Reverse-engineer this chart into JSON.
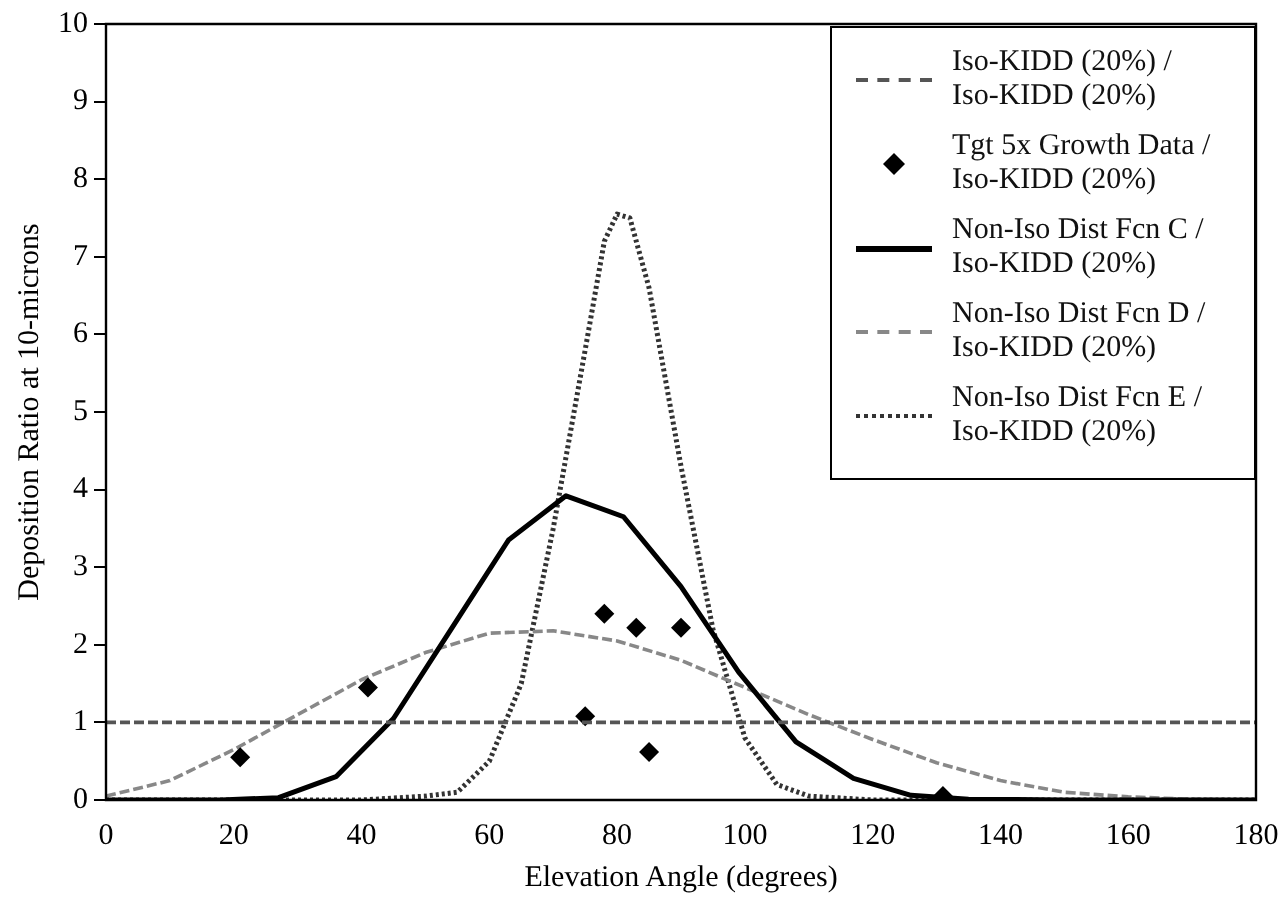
{
  "chart_data": {
    "type": "line",
    "xlabel": "Elevation Angle (degrees)",
    "ylabel": "Deposition Ratio at 10-microns",
    "xlim": [
      0,
      180
    ],
    "xticks": [
      0,
      20,
      40,
      60,
      80,
      100,
      120,
      140,
      160,
      180
    ],
    "ylim": [
      0,
      10
    ],
    "yticks": [
      0,
      1,
      2,
      3,
      4,
      5,
      6,
      7,
      8,
      9,
      10
    ],
    "grid": false,
    "legend": "top right",
    "marker": "none",
    "series": [
      {
        "name": "Iso-KIDD (20%) / Iso-KIDD (20%)",
        "type": "line",
        "line_style": "dashed",
        "color": "#555555",
        "x": [
          0,
          180
        ],
        "values": [
          1,
          1
        ]
      },
      {
        "name": "Tgt 5x Growth Data / Iso-KIDD (20%)",
        "type": "scatter",
        "marker": "diamond",
        "color": "#000000",
        "x": [
          21,
          41,
          75,
          78,
          83,
          85,
          90,
          131
        ],
        "values": [
          0.55,
          1.45,
          1.08,
          2.4,
          2.22,
          0.62,
          2.22,
          0.05
        ]
      },
      {
        "name": "Non-Iso Dist Fcn C / Iso-KIDD (20%)",
        "type": "line",
        "line_style": "solid",
        "color": "#000000",
        "x": [
          0,
          18,
          27,
          36,
          45,
          54,
          63,
          72,
          81,
          90,
          99,
          108,
          117,
          126,
          135,
          150,
          180
        ],
        "values": [
          0,
          0,
          0.03,
          0.3,
          1.05,
          2.2,
          3.35,
          3.92,
          3.65,
          2.75,
          1.65,
          0.75,
          0.28,
          0.06,
          0.01,
          0,
          0
        ]
      },
      {
        "name": "Non-Iso Dist Fcn D / Iso-KIDD (20%)",
        "type": "line",
        "line_style": "dashed",
        "color": "#888888",
        "x": [
          0,
          10,
          20,
          30,
          40,
          50,
          60,
          70,
          80,
          90,
          100,
          110,
          120,
          130,
          140,
          150,
          160,
          170,
          180
        ],
        "values": [
          0.05,
          0.25,
          0.65,
          1.1,
          1.55,
          1.9,
          2.15,
          2.18,
          2.05,
          1.8,
          1.45,
          1.1,
          0.78,
          0.48,
          0.25,
          0.1,
          0.04,
          0.01,
          0
        ]
      },
      {
        "name": "Non-Iso Dist Fcn E / Iso-KIDD (20%)",
        "type": "line",
        "line_style": "dotted",
        "color": "#333333",
        "x": [
          0,
          40,
          50,
          55,
          60,
          65,
          70,
          75,
          78,
          80,
          82,
          85,
          90,
          95,
          100,
          105,
          110,
          120,
          180
        ],
        "values": [
          0,
          0,
          0.05,
          0.1,
          0.5,
          1.5,
          3.5,
          5.8,
          7.2,
          7.55,
          7.5,
          6.6,
          4.3,
          2.2,
          0.8,
          0.2,
          0.05,
          0,
          0
        ]
      }
    ]
  }
}
